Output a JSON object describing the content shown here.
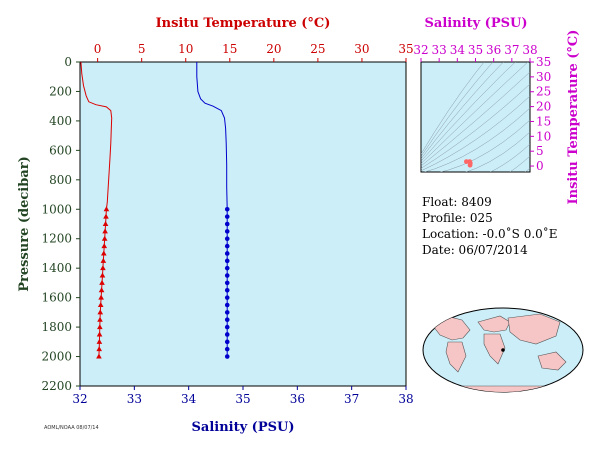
{
  "chart_data": [
    {
      "type": "line",
      "name": "profile",
      "top_axis": {
        "label": "Insitu Temperature (°C)",
        "range": [
          -2,
          35
        ],
        "ticks": [
          0,
          5,
          10,
          15,
          20,
          25,
          30,
          35
        ],
        "color": "#cc0000"
      },
      "bottom_axis": {
        "label": "Salinity (PSU)",
        "range": [
          32,
          38
        ],
        "ticks": [
          32,
          33,
          34,
          35,
          36,
          37,
          38
        ],
        "color": "#000099"
      },
      "left_axis": {
        "label": "Pressure (decibar)",
        "range": [
          0,
          2200
        ],
        "inverted": true,
        "ticks": [
          0,
          200,
          400,
          600,
          800,
          1000,
          1200,
          1400,
          1600,
          1800,
          2000,
          2200
        ],
        "color": "#224422"
      },
      "series": [
        {
          "name": "Insitu Temperature",
          "color": "#dd0000",
          "marker": "triangle",
          "points": [
            [
              -1.9,
              0
            ],
            [
              -1.8,
              80
            ],
            [
              -1.6,
              160
            ],
            [
              -1.3,
              230
            ],
            [
              -1.0,
              270
            ],
            [
              -0.2,
              290
            ],
            [
              1.0,
              305
            ],
            [
              1.5,
              330
            ],
            [
              1.6,
              380
            ],
            [
              1.55,
              450
            ],
            [
              1.5,
              550
            ],
            [
              1.4,
              650
            ],
            [
              1.3,
              750
            ],
            [
              1.2,
              850
            ],
            [
              1.1,
              950
            ],
            [
              1.0,
              1000
            ],
            [
              0.95,
              1050
            ],
            [
              0.9,
              1100
            ],
            [
              0.85,
              1150
            ],
            [
              0.8,
              1200
            ],
            [
              0.75,
              1250
            ],
            [
              0.7,
              1300
            ],
            [
              0.65,
              1350
            ],
            [
              0.6,
              1400
            ],
            [
              0.55,
              1450
            ],
            [
              0.5,
              1500
            ],
            [
              0.45,
              1550
            ],
            [
              0.4,
              1600
            ],
            [
              0.35,
              1650
            ],
            [
              0.3,
              1700
            ],
            [
              0.27,
              1750
            ],
            [
              0.25,
              1800
            ],
            [
              0.22,
              1850
            ],
            [
              0.2,
              1900
            ],
            [
              0.18,
              1950
            ],
            [
              0.15,
              2000
            ]
          ],
          "marker_from": 1000
        },
        {
          "name": "Salinity",
          "color": "#0000cc",
          "marker": "circle",
          "points": [
            [
              34.15,
              0
            ],
            [
              34.15,
              100
            ],
            [
              34.17,
              200
            ],
            [
              34.22,
              250
            ],
            [
              34.3,
              280
            ],
            [
              34.45,
              300
            ],
            [
              34.6,
              330
            ],
            [
              34.66,
              380
            ],
            [
              34.68,
              450
            ],
            [
              34.69,
              550
            ],
            [
              34.7,
              700
            ],
            [
              34.7,
              850
            ],
            [
              34.71,
              1000
            ],
            [
              34.71,
              1050
            ],
            [
              34.71,
              1100
            ],
            [
              34.71,
              1150
            ],
            [
              34.71,
              1200
            ],
            [
              34.71,
              1250
            ],
            [
              34.71,
              1300
            ],
            [
              34.71,
              1350
            ],
            [
              34.71,
              1400
            ],
            [
              34.71,
              1450
            ],
            [
              34.71,
              1500
            ],
            [
              34.71,
              1550
            ],
            [
              34.71,
              1600
            ],
            [
              34.71,
              1650
            ],
            [
              34.71,
              1700
            ],
            [
              34.71,
              1750
            ],
            [
              34.71,
              1800
            ],
            [
              34.71,
              1850
            ],
            [
              34.71,
              1900
            ],
            [
              34.71,
              1950
            ],
            [
              34.71,
              2000
            ]
          ],
          "marker_from": 1000
        }
      ]
    },
    {
      "type": "scatter",
      "name": "ts-diagram",
      "top_axis": {
        "label": "Salinity (PSU)",
        "range": [
          32,
          38
        ],
        "ticks": [
          32,
          33,
          34,
          35,
          36,
          37,
          38
        ],
        "color": "#cc00cc"
      },
      "right_axis": {
        "label": "Insitu Temperature (°C)",
        "range": [
          -2,
          35
        ],
        "ticks": [
          0,
          5,
          10,
          15,
          20,
          25,
          30,
          35
        ],
        "color": "#cc00cc"
      },
      "points": [
        [
          34.7,
          0.3
        ],
        [
          34.71,
          1.0
        ],
        [
          34.68,
          1.5
        ],
        [
          34.5,
          1.5
        ]
      ],
      "point_color": "#ff6666"
    }
  ],
  "info": {
    "float": "Float:  8409",
    "profile": "Profile:  025",
    "location": "Location:  -0.0˚S   0.0˚E",
    "date": "Date:  06/07/2014"
  },
  "map": {
    "marker_lat": 0.0,
    "marker_lon": 0.0,
    "land_color": "#f6c6c6",
    "ocean_color": "#cceef8"
  },
  "footer": {
    "credit": "AOML/NOAA 08/07/14"
  },
  "colors": {
    "plot_bg": "#cceef8",
    "temperature": "#dd0000",
    "salinity": "#0000cc",
    "pressure": "#224422",
    "ts": "#cc00cc"
  }
}
